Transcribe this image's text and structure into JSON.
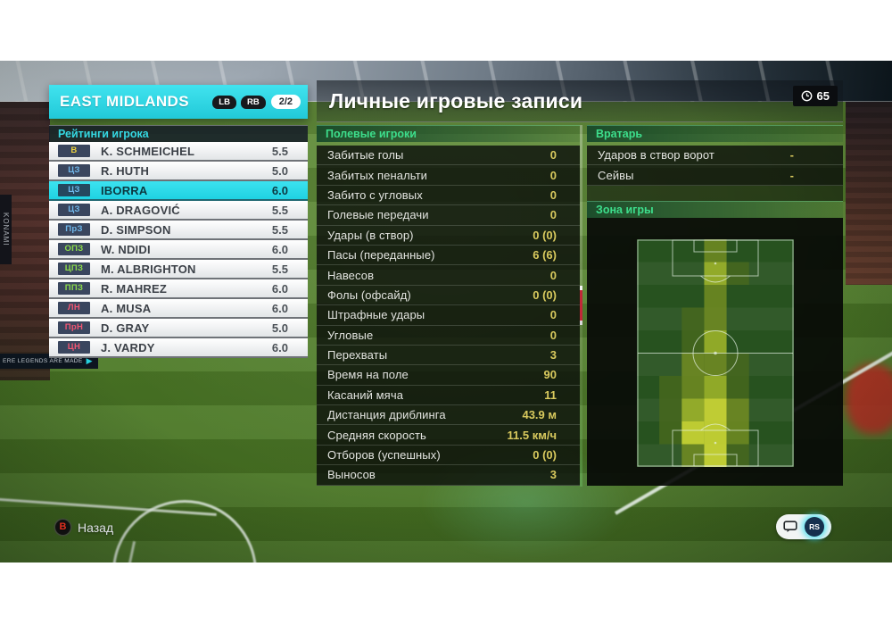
{
  "left_panel": {
    "team": "EAST MIDLANDS",
    "lb_label": "LB",
    "rb_label": "RB",
    "page": "2/2",
    "section_title": "Рейтинги игрока",
    "position_colors": {
      "gk": "#ecd23f",
      "def": "#6fb7ea",
      "mid": "#8cdb4a",
      "fwd": "#f25672"
    },
    "players": [
      {
        "pos": "В",
        "role": "gk",
        "name": "K. SCHMEICHEL",
        "rating": "5.5",
        "selected": false
      },
      {
        "pos": "ЦЗ",
        "role": "def",
        "name": "R. HUTH",
        "rating": "5.0",
        "selected": false
      },
      {
        "pos": "ЦЗ",
        "role": "def",
        "name": "IBORRA",
        "rating": "6.0",
        "selected": true
      },
      {
        "pos": "ЦЗ",
        "role": "def",
        "name": "A. DRAGOVIĆ",
        "rating": "5.5",
        "selected": false
      },
      {
        "pos": "ПрЗ",
        "role": "def",
        "name": "D. SIMPSON",
        "rating": "5.5",
        "selected": false
      },
      {
        "pos": "ОПЗ",
        "role": "mid",
        "name": "W. NDIDI",
        "rating": "6.0",
        "selected": false
      },
      {
        "pos": "ЦПЗ",
        "role": "mid",
        "name": "M. ALBRIGHTON",
        "rating": "5.5",
        "selected": false
      },
      {
        "pos": "ППЗ",
        "role": "mid",
        "name": "R. MAHREZ",
        "rating": "6.0",
        "selected": false
      },
      {
        "pos": "ЛН",
        "role": "fwd",
        "name": "A. MUSA",
        "rating": "6.0",
        "selected": false
      },
      {
        "pos": "ПрН",
        "role": "fwd",
        "name": "D. GRAY",
        "rating": "5.0",
        "selected": false
      },
      {
        "pos": "ЦН",
        "role": "fwd",
        "name": "J. VARDY",
        "rating": "6.0",
        "selected": false
      }
    ]
  },
  "main": {
    "title": "Личные игровые записи",
    "time": "65",
    "field_players": {
      "title": "Полевые игроки",
      "stats": [
        {
          "label": "Забитые голы",
          "value": "0"
        },
        {
          "label": "Забитых пенальти",
          "value": "0"
        },
        {
          "label": "Забито с угловых",
          "value": "0"
        },
        {
          "label": "Голевые передачи",
          "value": "0"
        },
        {
          "label": "Удары (в створ)",
          "value": "0 (0)"
        },
        {
          "label": "Пасы (переданные)",
          "value": "6 (6)"
        },
        {
          "label": "Навесов",
          "value": "0"
        },
        {
          "label": "Фолы (офсайд)",
          "value": "0 (0)"
        },
        {
          "label": "Штрафные удары",
          "value": "0"
        },
        {
          "label": "Угловые",
          "value": "0"
        },
        {
          "label": "Перехваты",
          "value": "3"
        },
        {
          "label": "Время на поле",
          "value": "90"
        },
        {
          "label": "Касаний мяча",
          "value": "11"
        },
        {
          "label": "Дистанция дриблинга",
          "value": "43.9 м"
        },
        {
          "label": "Средняя скорость",
          "value": "11.5 км/ч"
        },
        {
          "label": "Отборов (успешных)",
          "value": "0 (0)"
        },
        {
          "label": "Выносов",
          "value": "3"
        }
      ]
    },
    "goalkeeper": {
      "title": "Вратарь",
      "stats": [
        {
          "label": "Ударов в створ ворот",
          "value": "-"
        },
        {
          "label": "Сейвы",
          "value": "-"
        }
      ]
    },
    "zone": {
      "title": "Зона игры",
      "heatmap": {
        "cols": 7,
        "rows": 10,
        "intensity_colors": [
          "none",
          "#45671e",
          "#6f8a22",
          "#9fb52a",
          "#d3dc35"
        ],
        "pitch_base": "#27521f",
        "cells": [
          [
            0,
            0,
            0,
            2,
            0,
            0,
            0
          ],
          [
            0,
            0,
            0,
            3,
            1,
            0,
            0
          ],
          [
            0,
            0,
            0,
            2,
            0,
            0,
            0
          ],
          [
            0,
            0,
            1,
            2,
            0,
            0,
            0
          ],
          [
            0,
            0,
            1,
            3,
            0,
            0,
            0
          ],
          [
            0,
            0,
            2,
            2,
            1,
            0,
            0
          ],
          [
            0,
            1,
            2,
            3,
            1,
            0,
            0
          ],
          [
            0,
            1,
            3,
            4,
            2,
            0,
            0
          ],
          [
            0,
            1,
            4,
            4,
            2,
            0,
            0
          ],
          [
            0,
            0,
            2,
            4,
            1,
            0,
            0
          ]
        ]
      }
    }
  },
  "footer": {
    "back_button": "B",
    "back_label": "Назад",
    "rs_label": "RS"
  },
  "background": {
    "ad_side": "KONAMI",
    "ad_banner": "ERE LEGENDS ARE MADE"
  },
  "colors": {
    "accent_cyan": "#2bd8e6",
    "value_yellow": "#d9ca5e",
    "section_green": "#3dde8c"
  }
}
